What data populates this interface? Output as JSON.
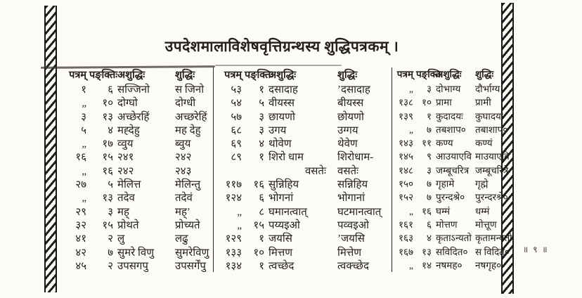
{
  "title": "उपदेशमालाविशेषवृत्तिग्रन्थस्य शुद्धिपत्रकम् ।",
  "page_number": "॥ ९ ॥",
  "headers": {
    "pattram": "पत्रम्",
    "pankti": "पङ्क्तिः",
    "ashuddhi": "अशुद्धिः",
    "shuddhi": "शुद्धिः"
  },
  "columns": [
    {
      "rows": [
        [
          "१",
          "६",
          "सज्जिनो",
          "स जिनो"
        ],
        [
          "„",
          "१०",
          "दोग्घो",
          "दोग्धी"
        ],
        [
          "३",
          "१३",
          "अच्छेरहिं",
          "अच्छरेहिं"
        ],
        [
          "५",
          "४",
          "मह्देहु",
          "मह देहु"
        ],
        [
          "„",
          "१७",
          "व्वुय",
          "ब्वुय"
        ],
        [
          "१६",
          "१५",
          "२४१",
          "२४२"
        ],
        [
          "„",
          "१६",
          "२४२",
          "२४३"
        ],
        [
          "२७",
          "५",
          "मेलित्त",
          "मेलिन्तु"
        ],
        [
          "„",
          "१३",
          "तदेव",
          "तदेवं"
        ],
        [
          "२९",
          "३",
          "मह्",
          "मह्ʼ"
        ],
        [
          "३२",
          "१५",
          "प्रोथते",
          "प्रोच्यते"
        ],
        [
          "४१",
          "२",
          "लु",
          "लढु"
        ],
        [
          "४२",
          "७",
          "सुमरे विणु",
          "सुमरेविणु"
        ],
        [
          "४५",
          "२",
          "उपसगपु",
          "उपसर्गेंपु"
        ]
      ]
    },
    {
      "rows": [
        [
          "५३",
          "१",
          "दसादाह",
          "ʼदसादाह"
        ],
        [
          "५४",
          "५",
          "वीयस्स",
          "बीयस्स"
        ],
        [
          "५७",
          "३",
          "छायणो",
          "छोयणो"
        ],
        [
          "६८",
          "३",
          "उगय",
          "उग्गय"
        ],
        [
          "६९",
          "४",
          "थोवेण",
          "थेवेण"
        ],
        [
          "८९",
          "१",
          "शिरो धाम",
          "शिरोधाम-"
        ],
        [
          "",
          "",
          "वसतेः",
          "वसतेः"
        ],
        [
          "११७",
          "१६",
          "सुन्निहिय",
          "सन्निहिय"
        ],
        [
          "१२४",
          "६",
          "भोगनां",
          "भोगानां"
        ],
        [
          "„",
          "८",
          "घमानत्वात्",
          "घटमानत्वात्"
        ],
        [
          "„",
          "१५",
          "पय्यइओ",
          "पव्वइओ"
        ],
        [
          "१२९",
          "१",
          "जयसि",
          "ʼजयसि"
        ],
        [
          "१३३",
          "१०",
          "मित्तण",
          "मित्तेण"
        ],
        [
          "१३४",
          "१",
          "त्वच्छेद",
          "त्वक्च्छेद"
        ]
      ]
    },
    {
      "rows": [
        [
          "„",
          "३",
          "दोभाग्य",
          "दौर्भाग्य"
        ],
        [
          "१३८",
          "१०",
          "प्रामा",
          "प्रामी"
        ],
        [
          "१३९",
          "१",
          "कुदादयः",
          "कुघादयः"
        ],
        [
          "„",
          "७",
          "तबशाप०",
          "तबाशाप०"
        ],
        [
          "१४३",
          "११",
          "कण्य",
          "कण्यं"
        ],
        [
          "१४५",
          "९",
          "आउयाएवि",
          "माउयाएवि"
        ],
        [
          "१४८",
          "३",
          "जम्बूचरित्र",
          "जम्बूचरित्रे"
        ],
        [
          "१५०",
          "७",
          "गृहामे",
          "गृह्मे"
        ],
        [
          "१५२",
          "७",
          "पुरन्दश्रे०",
          "पुरन्दरश्रे०"
        ],
        [
          "„",
          "१६",
          "घम्मं",
          "धम्मं"
        ],
        [
          "१६१",
          "६",
          "मोत्तण",
          "मोत्तूण"
        ],
        [
          "१६३",
          "४",
          "कृताऽन्यतो",
          "कृतामन्यतो"
        ],
        [
          "१६७",
          "१३",
          "सविदित०",
          "स विदित०"
        ],
        [
          "„",
          "१४",
          "नषमह०",
          "नषगृह०"
        ]
      ]
    }
  ]
}
